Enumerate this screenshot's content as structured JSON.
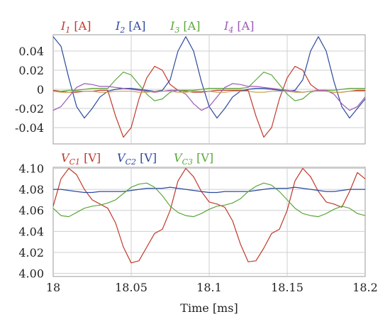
{
  "chart_data": [
    {
      "type": "line",
      "x": [
        18.0,
        18.005,
        18.01,
        18.015,
        18.02,
        18.025,
        18.03,
        18.035,
        18.04,
        18.045,
        18.05,
        18.055,
        18.06,
        18.065,
        18.07,
        18.075,
        18.08,
        18.085,
        18.09,
        18.095,
        18.1,
        18.105,
        18.11,
        18.115,
        18.12,
        18.125,
        18.13,
        18.135,
        18.14,
        18.145,
        18.15,
        18.155,
        18.16,
        18.165,
        18.17,
        18.175,
        18.18,
        18.185,
        18.19,
        18.195,
        18.2
      ],
      "series": [
        {
          "name": "I1",
          "unit": "[A]",
          "color": "#c0392b",
          "values": [
            -0.001,
            -0.002,
            -0.003,
            -0.003,
            -0.002,
            -0.002,
            -0.001,
            -0.001,
            -0.028,
            -0.05,
            -0.04,
            -0.01,
            0.012,
            0.024,
            0.02,
            0.005,
            -0.001,
            -0.002,
            -0.003,
            -0.003,
            -0.002,
            -0.001,
            -0.001,
            -0.001,
            -0.001,
            -0.001,
            -0.028,
            -0.05,
            -0.04,
            -0.01,
            0.012,
            0.024,
            0.02,
            0.005,
            -0.001,
            -0.002,
            -0.003,
            -0.003,
            -0.002,
            -0.001,
            -0.001
          ]
        },
        {
          "name": "I2",
          "unit": "[A]",
          "color": "#2c4a9e",
          "values": [
            0.055,
            0.045,
            0.012,
            -0.018,
            -0.03,
            -0.02,
            -0.008,
            -0.002,
            0.0,
            0.001,
            0.001,
            0.0,
            -0.001,
            -0.002,
            -0.001,
            0.01,
            0.04,
            0.055,
            0.04,
            0.008,
            -0.018,
            -0.03,
            -0.02,
            -0.008,
            -0.002,
            0.0,
            0.001,
            0.001,
            0.0,
            -0.001,
            -0.002,
            -0.001,
            0.01,
            0.04,
            0.055,
            0.04,
            0.008,
            -0.018,
            -0.03,
            -0.02,
            -0.01
          ]
        },
        {
          "name": "I3",
          "unit": "[A]",
          "color": "#5aa83a",
          "values": [
            -0.002,
            -0.002,
            -0.001,
            -0.001,
            0.0,
            0.001,
            0.001,
            0.001,
            0.01,
            0.018,
            0.015,
            0.005,
            -0.005,
            -0.012,
            -0.01,
            -0.003,
            -0.001,
            -0.001,
            -0.001,
            0.0,
            0.001,
            0.001,
            0.001,
            0.001,
            0.001,
            0.002,
            0.01,
            0.018,
            0.015,
            0.005,
            -0.005,
            -0.012,
            -0.01,
            -0.003,
            -0.001,
            -0.001,
            -0.001,
            0.0,
            0.001,
            0.001,
            0.001
          ]
        },
        {
          "name": "I4",
          "unit": "[A]",
          "color": "#9b59b6",
          "values": [
            -0.022,
            -0.018,
            -0.008,
            0.002,
            0.006,
            0.005,
            0.003,
            0.003,
            0.002,
            0.001,
            0.0,
            -0.001,
            -0.002,
            -0.003,
            -0.002,
            -0.001,
            -0.001,
            -0.005,
            -0.015,
            -0.022,
            -0.018,
            -0.008,
            0.002,
            0.006,
            0.005,
            0.003,
            0.003,
            0.002,
            0.001,
            0.0,
            -0.001,
            -0.002,
            -0.003,
            -0.002,
            -0.001,
            -0.001,
            -0.005,
            -0.015,
            -0.022,
            -0.018,
            -0.008
          ]
        },
        {
          "name": "",
          "unit": "",
          "color": "#c8a050",
          "values": [
            -0.002,
            -0.003,
            -0.003,
            -0.002,
            -0.002,
            -0.002,
            -0.003,
            -0.003,
            -0.002,
            -0.002,
            -0.002,
            -0.003,
            -0.003,
            -0.002,
            -0.002,
            -0.002,
            -0.003,
            -0.003,
            -0.002,
            -0.002,
            -0.002,
            -0.003,
            -0.003,
            -0.002,
            -0.002,
            -0.002,
            -0.003,
            -0.003,
            -0.002,
            -0.002,
            -0.002,
            -0.003,
            -0.003,
            -0.002,
            -0.002,
            -0.002,
            -0.003,
            -0.003,
            -0.002,
            -0.002,
            -0.002
          ]
        }
      ],
      "yticks": [
        "0.04",
        "0.02",
        "0",
        "-0.02",
        "-0.04"
      ],
      "ytick_values": [
        0.04,
        0.02,
        0,
        -0.02,
        -0.04
      ],
      "ylim": [
        -0.057,
        0.057
      ],
      "xlim": [
        18.0,
        18.2
      ],
      "grid": true,
      "legend": "top"
    },
    {
      "type": "line",
      "x": [
        18.0,
        18.005,
        18.01,
        18.015,
        18.02,
        18.025,
        18.03,
        18.035,
        18.04,
        18.045,
        18.05,
        18.055,
        18.06,
        18.065,
        18.07,
        18.075,
        18.08,
        18.085,
        18.09,
        18.095,
        18.1,
        18.105,
        18.11,
        18.115,
        18.12,
        18.125,
        18.13,
        18.135,
        18.14,
        18.145,
        18.15,
        18.155,
        18.16,
        18.165,
        18.17,
        18.175,
        18.18,
        18.185,
        18.19,
        18.195,
        18.2
      ],
      "series": [
        {
          "name": "VC1",
          "unit": "[V]",
          "color": "#c0392b",
          "values": [
            4.064,
            4.09,
            4.1,
            4.094,
            4.08,
            4.07,
            4.066,
            4.062,
            4.048,
            4.025,
            4.01,
            4.012,
            4.025,
            4.038,
            4.042,
            4.06,
            4.088,
            4.1,
            4.092,
            4.078,
            4.068,
            4.066,
            4.063,
            4.05,
            4.028,
            4.011,
            4.012,
            4.024,
            4.038,
            4.042,
            4.06,
            4.088,
            4.1,
            4.092,
            4.078,
            4.068,
            4.066,
            4.063,
            4.078,
            4.096,
            4.09
          ]
        },
        {
          "name": "VC2",
          "unit": "[V]",
          "color": "#2c4a9e",
          "values": [
            4.08,
            4.08,
            4.079,
            4.078,
            4.077,
            4.077,
            4.078,
            4.078,
            4.078,
            4.078,
            4.079,
            4.08,
            4.081,
            4.081,
            4.081,
            4.082,
            4.081,
            4.08,
            4.079,
            4.078,
            4.077,
            4.077,
            4.078,
            4.078,
            4.078,
            4.078,
            4.079,
            4.08,
            4.081,
            4.081,
            4.081,
            4.082,
            4.081,
            4.08,
            4.079,
            4.078,
            4.078,
            4.079,
            4.08,
            4.08,
            4.08
          ]
        },
        {
          "name": "VC3",
          "unit": "[V]",
          "color": "#5aa83a",
          "values": [
            4.062,
            4.055,
            4.054,
            4.058,
            4.062,
            4.064,
            4.065,
            4.067,
            4.07,
            4.076,
            4.082,
            4.085,
            4.086,
            4.082,
            4.074,
            4.064,
            4.058,
            4.055,
            4.054,
            4.057,
            4.061,
            4.064,
            4.065,
            4.067,
            4.071,
            4.078,
            4.083,
            4.086,
            4.084,
            4.078,
            4.07,
            4.062,
            4.057,
            4.055,
            4.054,
            4.057,
            4.061,
            4.064,
            4.062,
            4.057,
            4.055
          ]
        }
      ],
      "yticks": [
        "4.10",
        "4.08",
        "4.06",
        "4.04",
        "4.02",
        "4.00"
      ],
      "ytick_values": [
        4.1,
        4.08,
        4.06,
        4.04,
        4.02,
        4.0
      ],
      "ylim": [
        3.997,
        4.101
      ],
      "xlim": [
        18.0,
        18.2
      ],
      "xticks": [
        "18",
        "18.05",
        "18.1",
        "18.15",
        "18.2"
      ],
      "xtick_values": [
        18.0,
        18.05,
        18.1,
        18.15,
        18.2
      ],
      "xlabel": "Time [ms]",
      "grid": true,
      "legend": "top"
    }
  ]
}
